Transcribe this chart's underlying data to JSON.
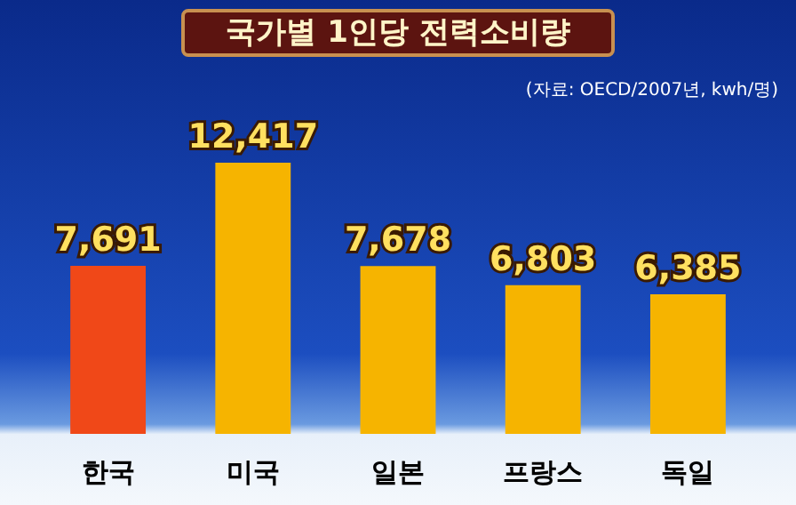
{
  "chart_data": {
    "type": "bar",
    "title": "국가별 1인당 전력소비량",
    "annotations": [
      "(자료: OECD/2007년, kwh/명)"
    ],
    "categories": [
      "한국",
      "미국",
      "일본",
      "프랑스",
      "독일"
    ],
    "values": [
      7691,
      12417,
      7678,
      6803,
      6385
    ],
    "colors": [
      "#f04818",
      "#f6b400",
      "#f6b400",
      "#f6b400",
      "#f6b400"
    ],
    "value_labels": [
      "7,691",
      "12,417",
      "7,678",
      "6,803",
      "6,385"
    ]
  }
}
